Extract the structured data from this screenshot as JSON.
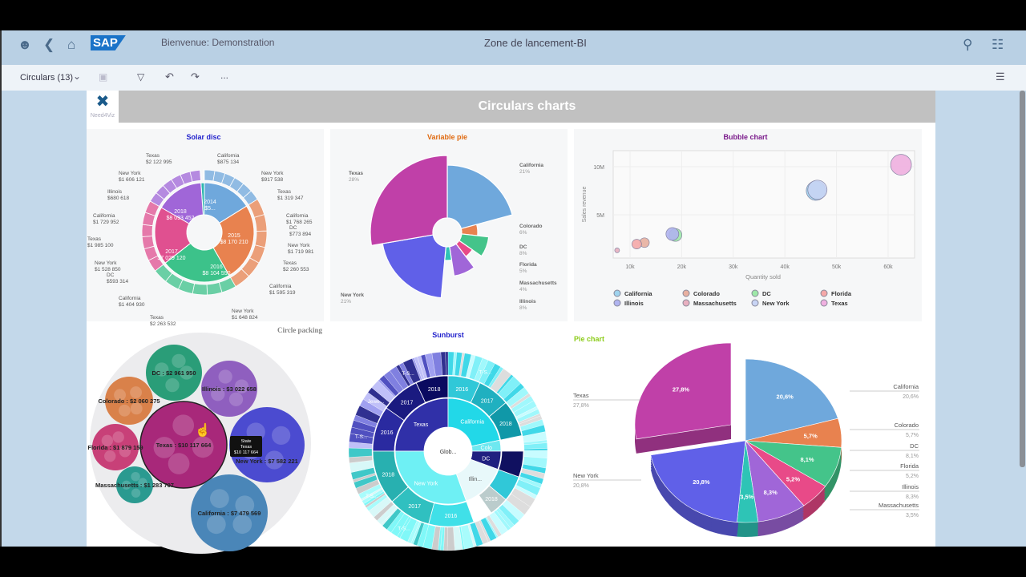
{
  "shell": {
    "welcome": "Bienvenue: Demonstration",
    "title": "Zone de lancement-BI",
    "logo": "SAP",
    "icons": [
      "user-icon",
      "back-icon",
      "home-icon",
      "search-icon",
      "user-settings-icon"
    ]
  },
  "toolbar": {
    "view_label": "Circulars (13)",
    "more": "..."
  },
  "page": {
    "banner_title": "Circulars charts",
    "logo_text": "Need4Viz"
  },
  "chart_data": [
    {
      "type": "sunburst",
      "title": "Solar disc",
      "title_color": "#2222cc",
      "inner": [
        {
          "label": "2014",
          "value": "$5..."
        },
        {
          "label": "2015",
          "value": "$8 170 210"
        },
        {
          "label": "2016",
          "value": "$8 104 550"
        },
        {
          "label": "2017",
          "value": "$7 029 120"
        },
        {
          "label": "2018",
          "value": "$8 093 452"
        }
      ],
      "outer_labels": [
        {
          "name": "California",
          "value": "$875 134"
        },
        {
          "name": "New York",
          "value": "$917 538"
        },
        {
          "name": "Texas",
          "value": "$1 319 347"
        },
        {
          "name": "California",
          "value": "$1 768 265"
        },
        {
          "name": "DC",
          "value": "$773 894"
        },
        {
          "name": "New York",
          "value": "$1 719 981"
        },
        {
          "name": "Texas",
          "value": "$2 260 553"
        },
        {
          "name": "California",
          "value": "$1 595 319"
        },
        {
          "name": "New York",
          "value": "$1 648 824"
        },
        {
          "name": "Texas",
          "value": "$2 263 532"
        },
        {
          "name": "California",
          "value": "$1 404 930"
        },
        {
          "name": "DC",
          "value": "$593 314"
        },
        {
          "name": "New York",
          "value": "$1 528 850"
        },
        {
          "name": "Texas",
          "value": "$1 985 100"
        },
        {
          "name": "California",
          "value": "$1 729 952"
        },
        {
          "name": "Illinois",
          "value": "$680 618"
        },
        {
          "name": "New York",
          "value": "$1 606 121"
        },
        {
          "name": "Texas",
          "value": "$2 122 995"
        }
      ]
    },
    {
      "type": "pie",
      "title": "Variable pie",
      "title_color": "#e06a10",
      "categories": [
        "California",
        "Colorado",
        "DC",
        "Florida",
        "Illinois",
        "Massachusetts",
        "New York",
        "Texas"
      ],
      "labels": [
        "21%",
        "6%",
        "8%",
        "5%",
        "8%",
        "4%",
        "21%",
        "28%"
      ],
      "values": [
        21,
        6,
        8,
        5,
        8,
        4,
        21,
        28
      ]
    },
    {
      "type": "scatter",
      "title": "Bubble chart",
      "title_color": "#7a1a8a",
      "xlabel": "Quantity sold",
      "ylabel": "Sales revenue",
      "xticks": [
        "10k",
        "20k",
        "30k",
        "40k",
        "50k",
        "60k"
      ],
      "yticks": [
        "5M",
        "10M"
      ],
      "xlim": [
        6500,
        65000
      ],
      "ylim": [
        0,
        12000000
      ],
      "grid": true,
      "legend": "bottom",
      "series": [
        {
          "name": "California",
          "x": 46000,
          "y": 7500000,
          "color": "#9fd3ee"
        },
        {
          "name": "Colorado",
          "x": 12800,
          "y": 2100000,
          "color": "#e8b0a0"
        },
        {
          "name": "DC",
          "x": 18800,
          "y": 2900000,
          "color": "#9ee8a8"
        },
        {
          "name": "Florida",
          "x": 11300,
          "y": 1950000,
          "color": "#f5a8a8"
        },
        {
          "name": "Illinois",
          "x": 18200,
          "y": 3000000,
          "color": "#b0b4f0"
        },
        {
          "name": "Massachusetts",
          "x": 7500,
          "y": 1300000,
          "color": "#e8b0c0"
        },
        {
          "name": "New York",
          "x": 46300,
          "y": 7600000,
          "color": "#c8d4f4"
        },
        {
          "name": "Texas",
          "x": 62500,
          "y": 10200000,
          "color": "#f0b0e0"
        }
      ]
    },
    {
      "type": "circle-packing",
      "title": "Circle packing",
      "items": [
        {
          "label": "DC : $2 961 950",
          "color": "#2a9d78"
        },
        {
          "label": "Illinois : $3 022 658",
          "color": "#8f5fbf"
        },
        {
          "label": "Colorado : $2 060 275",
          "color": "#d9814a"
        },
        {
          "label": "Texas : $10 117 664",
          "color": "#a8287a"
        },
        {
          "label": "New York : $7 582 221",
          "color": "#4b4bd0"
        },
        {
          "label": "Florida : $1 879 159",
          "color": "#c84078"
        },
        {
          "label": "Massachusetts : $1 283 707",
          "color": "#2a9a90"
        },
        {
          "label": "California : $7 479 569",
          "color": "#4a86b8"
        }
      ],
      "tooltip": {
        "title": "State",
        "name": "Texas",
        "value": "$10 117 664"
      }
    },
    {
      "type": "sunburst",
      "title": "Sunburst",
      "title_color": "#2222cc",
      "center": "Glob...",
      "ring1": [
        "Texas",
        "California",
        "Colo",
        "DC",
        "Illin...",
        "New York"
      ],
      "ring2": [
        "2016",
        "2017",
        "2018"
      ],
      "leaf": "T-S...",
      "leaf2": "Jewe..."
    },
    {
      "type": "pie",
      "title": "Pie chart",
      "title_color": "#8ccc1a",
      "categories": [
        "California",
        "Colorado",
        "DC",
        "Florida",
        "Illinois",
        "Massachusetts",
        "New York",
        "Texas"
      ],
      "labels": [
        "20,6%",
        "5,7%",
        "8,1%",
        "5,2%",
        "8,3%",
        "3,5%",
        "20,8%",
        "27,8%"
      ],
      "values": [
        20.6,
        5.7,
        8.1,
        5.2,
        8.3,
        3.5,
        20.8,
        27.8
      ],
      "colors": [
        "#6fa8dc",
        "#e8824f",
        "#44c48a",
        "#e84a88",
        "#a066d8",
        "#2ec4b6",
        "#6060e8",
        "#c040a8"
      ]
    }
  ]
}
